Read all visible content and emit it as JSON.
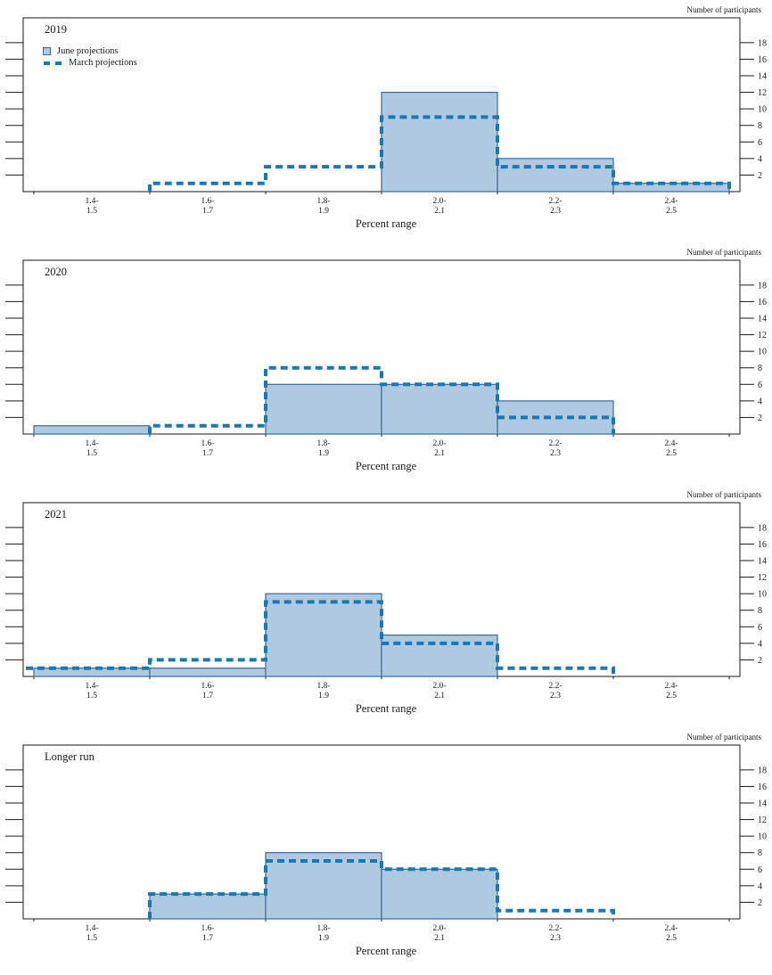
{
  "meta": {
    "participants_label": "Number of participants",
    "x_axis_label": "Percent range",
    "legend": {
      "june": "June projections",
      "march": "March projections"
    },
    "colors": {
      "bar_fill": "#aec9e0",
      "bar_stroke": "#3a6a96",
      "march_line": "#1679b5",
      "frame": "#1a1a1a",
      "text": "#1a1a1a"
    }
  },
  "chart_data": [
    {
      "type": "bar",
      "panel": "2019",
      "title": "2019",
      "categories": [
        "1.4-1.5",
        "1.6-1.7",
        "1.8-1.9",
        "2.0-2.1",
        "2.2-2.3",
        "2.4-2.5"
      ],
      "series": [
        {
          "name": "June projections",
          "style": "bar",
          "values": [
            0,
            0,
            0,
            12,
            4,
            1
          ]
        },
        {
          "name": "March projections",
          "style": "dashed-step-line",
          "values": [
            0,
            1,
            3,
            9,
            3,
            1
          ]
        }
      ],
      "xlabel": "Percent range",
      "ylabel": "Number of participants",
      "ylim": [
        0,
        21
      ],
      "yticks": [
        2,
        4,
        6,
        8,
        10,
        12,
        14,
        16,
        18
      ],
      "legend_position": "top-left",
      "grid": false
    },
    {
      "type": "bar",
      "panel": "2020",
      "title": "2020",
      "categories": [
        "1.4-1.5",
        "1.6-1.7",
        "1.8-1.9",
        "2.0-2.1",
        "2.2-2.3",
        "2.4-2.5"
      ],
      "series": [
        {
          "name": "June projections",
          "style": "bar",
          "values": [
            1,
            0,
            6,
            6,
            4,
            0
          ]
        },
        {
          "name": "March projections",
          "style": "dashed-step-line",
          "values": [
            0,
            1,
            8,
            6,
            2,
            0
          ]
        }
      ],
      "xlabel": "Percent range",
      "ylabel": "Number of participants",
      "ylim": [
        0,
        21
      ],
      "yticks": [
        2,
        4,
        6,
        8,
        10,
        12,
        14,
        16,
        18
      ],
      "legend_position": "none",
      "grid": false
    },
    {
      "type": "bar",
      "panel": "2021",
      "title": "2021",
      "categories": [
        "1.4-1.5",
        "1.6-1.7",
        "1.8-1.9",
        "2.0-2.1",
        "2.2-2.3",
        "2.4-2.5"
      ],
      "series": [
        {
          "name": "June projections",
          "style": "bar",
          "values": [
            1,
            1,
            10,
            5,
            0,
            0
          ]
        },
        {
          "name": "March projections",
          "style": "dashed-step-line",
          "values": [
            1,
            2,
            9,
            4,
            1,
            0
          ]
        }
      ],
      "xlabel": "Percent range",
      "ylabel": "Number of participants",
      "ylim": [
        0,
        21
      ],
      "yticks": [
        2,
        4,
        6,
        8,
        10,
        12,
        14,
        16,
        18
      ],
      "legend_position": "none",
      "grid": false
    },
    {
      "type": "bar",
      "panel": "Longer run",
      "title": "Longer run",
      "categories": [
        "1.4-1.5",
        "1.6-1.7",
        "1.8-1.9",
        "2.0-2.1",
        "2.2-2.3",
        "2.4-2.5"
      ],
      "series": [
        {
          "name": "June projections",
          "style": "bar",
          "values": [
            0,
            3,
            8,
            6,
            0,
            0
          ]
        },
        {
          "name": "March projections",
          "style": "dashed-step-line",
          "values": [
            0,
            3,
            7,
            6,
            1,
            0
          ]
        }
      ],
      "xlabel": "Percent range",
      "ylabel": "Number of participants",
      "ylim": [
        0,
        21
      ],
      "yticks": [
        2,
        4,
        6,
        8,
        10,
        12,
        14,
        16,
        18
      ],
      "legend_position": "none",
      "grid": false
    }
  ]
}
